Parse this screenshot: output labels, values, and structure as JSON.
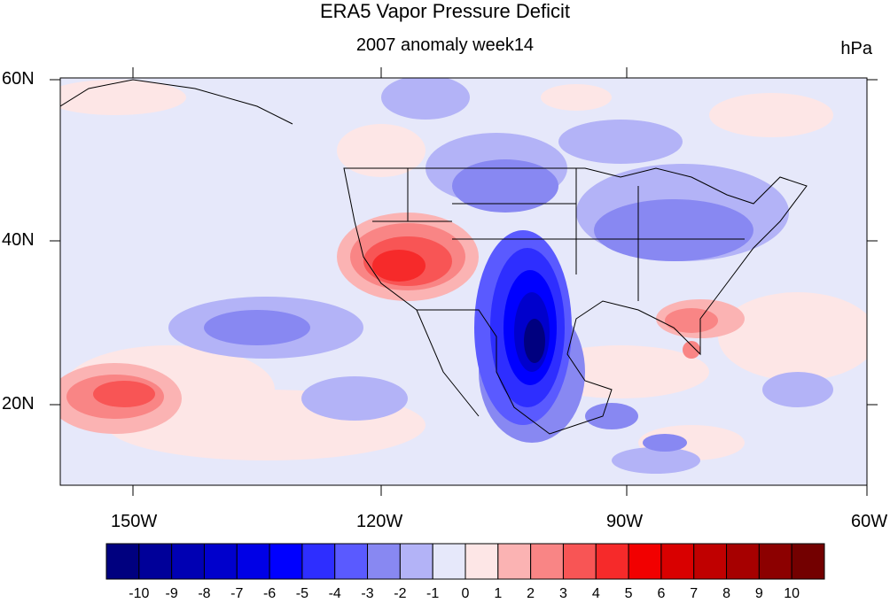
{
  "title": "ERA5 Vapor Pressure Deficit",
  "subtitle": "2007 anomaly week14",
  "units": "hPa",
  "map": {
    "lon_range": [
      -160,
      -60
    ],
    "lat_range": [
      10,
      60
    ],
    "x_tick_labels": [
      "150W",
      "120W",
      "90W",
      "60W"
    ],
    "y_tick_labels": [
      "60N",
      "40N",
      "20N"
    ],
    "colors": {
      "land_boundary": "#000000",
      "background_anomaly": "#e6e8fa"
    }
  },
  "colorbar": {
    "labels": [
      "-10",
      "-9",
      "-8",
      "-7",
      "-6",
      "-5",
      "-4",
      "-3",
      "-2",
      "-1",
      "0",
      "1",
      "2",
      "3",
      "4",
      "5",
      "6",
      "7",
      "8",
      "9",
      "10"
    ],
    "colors": [
      "#00007f",
      "#000099",
      "#0000b3",
      "#0000cc",
      "#0000e6",
      "#0000ff",
      "#2e2eff",
      "#5a5aff",
      "#8888f2",
      "#b3b3f7",
      "#e6e8fa",
      "#fde6e6",
      "#fbb3b3",
      "#f98585",
      "#f85555",
      "#f62a2a",
      "#f20000",
      "#d90000",
      "#c00000",
      "#a60000",
      "#8c0000",
      "#730000"
    ]
  }
}
